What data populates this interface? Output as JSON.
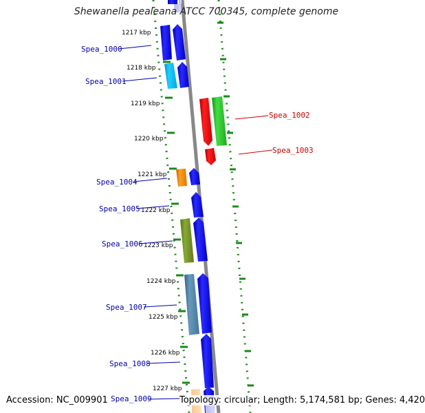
{
  "title": "Shewanella pealeana ATCC 700345, complete genome",
  "accession": "Accession: NC_009901",
  "summary": "Topology: circular; Length: 5,174,581 bp; Genes: 4,420",
  "colors": {
    "backbone": "#888888",
    "forward_label": "#0000aa",
    "reverse_label": "#cc0000",
    "tick": "#1a8a1a"
  },
  "ticks": [
    "1217 kbp",
    "1218 kbp",
    "1219 kbp",
    "1220 kbp",
    "1221 kbp",
    "1222 kbp",
    "1223 kbp",
    "1224 kbp",
    "1225 kbp",
    "1226 kbp",
    "1227 kbp"
  ],
  "genes": [
    {
      "label": "Spea_1000",
      "strand": "reverse"
    },
    {
      "label": "Spea_1001",
      "strand": "reverse"
    },
    {
      "label": "Spea_1002",
      "strand": "forward"
    },
    {
      "label": "Spea_1003",
      "strand": "forward"
    },
    {
      "label": "Spea_1004",
      "strand": "reverse"
    },
    {
      "label": "Spea_1005",
      "strand": "reverse"
    },
    {
      "label": "Spea_1006",
      "strand": "reverse"
    },
    {
      "label": "Spea_1007",
      "strand": "reverse"
    },
    {
      "label": "Spea_1008",
      "strand": "reverse"
    },
    {
      "label": "Spea_1009",
      "strand": "reverse"
    }
  ]
}
